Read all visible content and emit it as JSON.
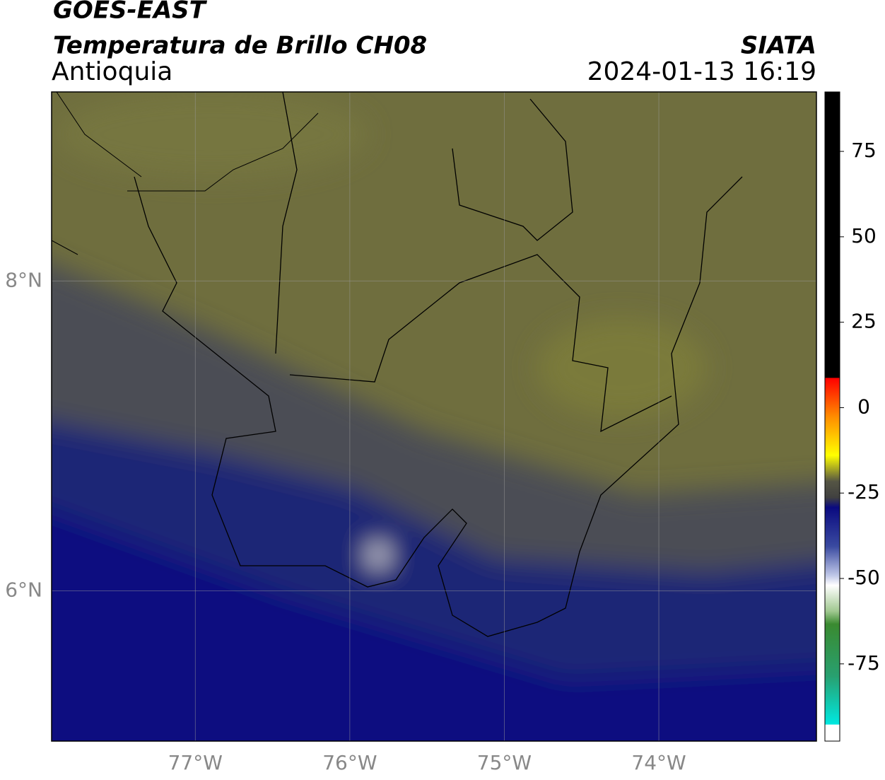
{
  "header": {
    "title": "GOES-EAST",
    "subtitle": "Temperatura de Brillo CH08",
    "region": "Antioquia",
    "source": "SIATA",
    "datetime": "2024-01-13 16:19"
  },
  "map": {
    "xlim": [
      -77.93,
      -72.98
    ],
    "ylim": [
      5.03,
      9.22
    ],
    "xticks": [
      {
        "value": -77,
        "label": "77°W"
      },
      {
        "value": -76,
        "label": "76°W"
      },
      {
        "value": -75,
        "label": "75°W"
      },
      {
        "value": -74,
        "label": "74°W"
      }
    ],
    "yticks": [
      {
        "value": 8,
        "label": "8°N"
      },
      {
        "value": 6,
        "label": "6°N"
      }
    ],
    "grid": true
  },
  "colorbar": {
    "lim": [
      -97.6,
      92.4
    ],
    "ticks": [
      75,
      50,
      25,
      0,
      -25,
      -50,
      -75
    ]
  }
}
